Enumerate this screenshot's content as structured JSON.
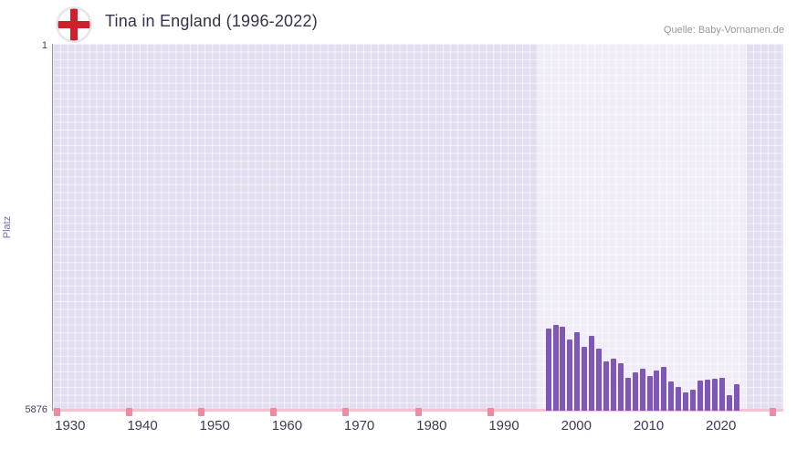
{
  "header": {
    "title": "Tina in England (1996-2022)",
    "source": "Quelle: Baby-Vornamen.de"
  },
  "colors": {
    "bar": "#7e57b8",
    "plot_background": "#e3ddf0",
    "highlight_band": "#efeaf8",
    "grid_line": "#ffffff",
    "x_axis_line": "#f4c3d2",
    "no_data_marker": "#ef8aa5",
    "flag_cross_red": "#d21f2e"
  },
  "chart_data": {
    "type": "bar",
    "title": "Tina in England (1996-2022)",
    "xlabel": "",
    "ylabel": "Platz",
    "y_axis": {
      "top_label": "1",
      "bottom_label": "5876",
      "min": 1,
      "max": 5876,
      "inverted": true
    },
    "x_domain": [
      1927.5,
      2028.5
    ],
    "x_ticks": [
      1930,
      1940,
      1950,
      1960,
      1970,
      1980,
      1990,
      2000,
      2010,
      2020
    ],
    "highlight_band": {
      "start": 1994.5,
      "end": 2023.5
    },
    "no_data_marker_years": [
      1928,
      1938,
      1948,
      1958,
      1968,
      1978,
      1988,
      2027
    ],
    "grid": true,
    "legend": false,
    "series": [
      {
        "name": "Platz",
        "years": [
          1996,
          1997,
          1998,
          1999,
          2000,
          2001,
          2002,
          2003,
          2004,
          2005,
          2006,
          2007,
          2008,
          2009,
          2010,
          2011,
          2012,
          2013,
          2014,
          2015,
          2016,
          2017,
          2018,
          2019,
          2020,
          2021,
          2022
        ],
        "values": [
          4560,
          4500,
          4530,
          4735,
          4620,
          4850,
          4680,
          4880,
          5090,
          5040,
          5120,
          5350,
          5260,
          5200,
          5320,
          5230,
          5170,
          5410,
          5500,
          5580,
          5540,
          5395,
          5380,
          5370,
          5355,
          5620,
          5450
        ]
      }
    ]
  }
}
